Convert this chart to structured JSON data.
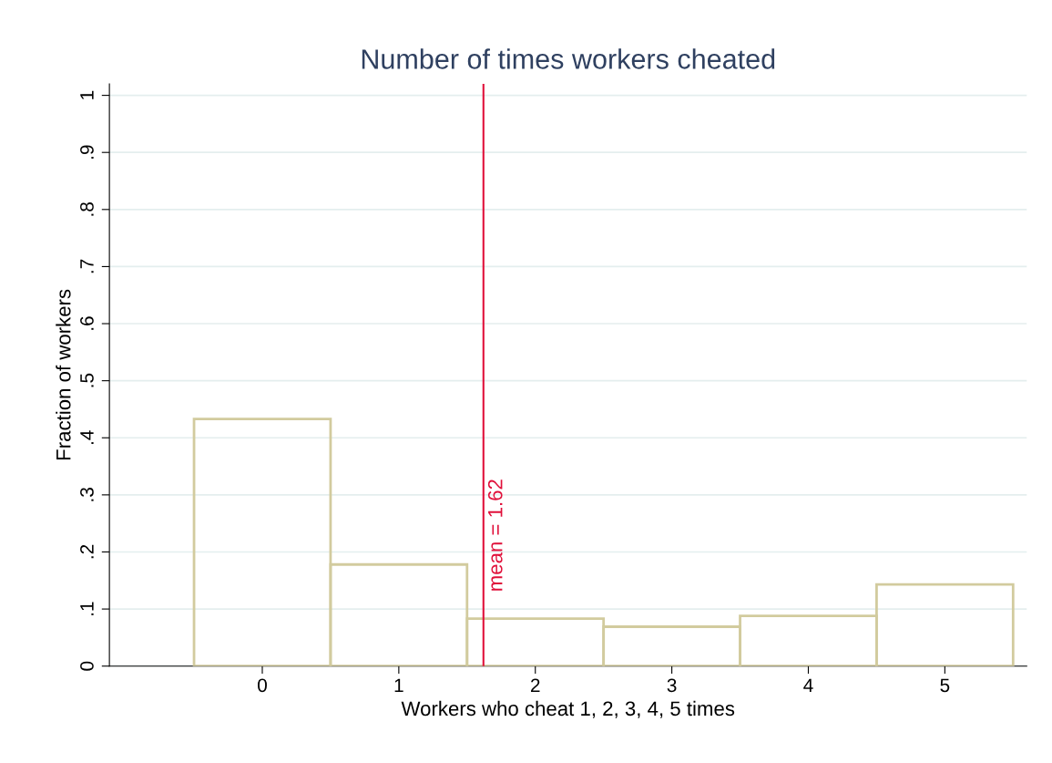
{
  "chart_data": {
    "type": "histogram",
    "title": "Number of times workers cheated",
    "xlabel": "Workers who cheat 1, 2, 3, 4, 5 times",
    "ylabel": "Fraction of workers",
    "bins": [
      -0.5,
      0.5,
      1.5,
      2.5,
      3.5,
      4.5,
      5.5
    ],
    "values": [
      0.433,
      0.178,
      0.083,
      0.069,
      0.088,
      0.143
    ],
    "color": "#d2cb9e",
    "xlim": [
      -1.12,
      5.6
    ],
    "xticks": [
      0,
      1,
      2,
      3,
      4,
      5
    ],
    "ylim": [
      0,
      1.02
    ],
    "yticks": [
      {
        "value": 0,
        "label": "0"
      },
      {
        "value": 0.1,
        "label": ".1"
      },
      {
        "value": 0.2,
        "label": ".2"
      },
      {
        "value": 0.3,
        "label": ".3"
      },
      {
        "value": 0.4,
        "label": ".4"
      },
      {
        "value": 0.5,
        "label": ".5"
      },
      {
        "value": 0.6,
        "label": ".6"
      },
      {
        "value": 0.7,
        "label": ".7"
      },
      {
        "value": 0.8,
        "label": ".8"
      },
      {
        "value": 0.9,
        "label": ".9"
      },
      {
        "value": 1,
        "label": "1"
      }
    ],
    "grid": "y",
    "ref_lines": [
      {
        "axis": "x",
        "value": 1.62,
        "label": "mean = 1.62",
        "color": "#e0103a"
      }
    ]
  }
}
